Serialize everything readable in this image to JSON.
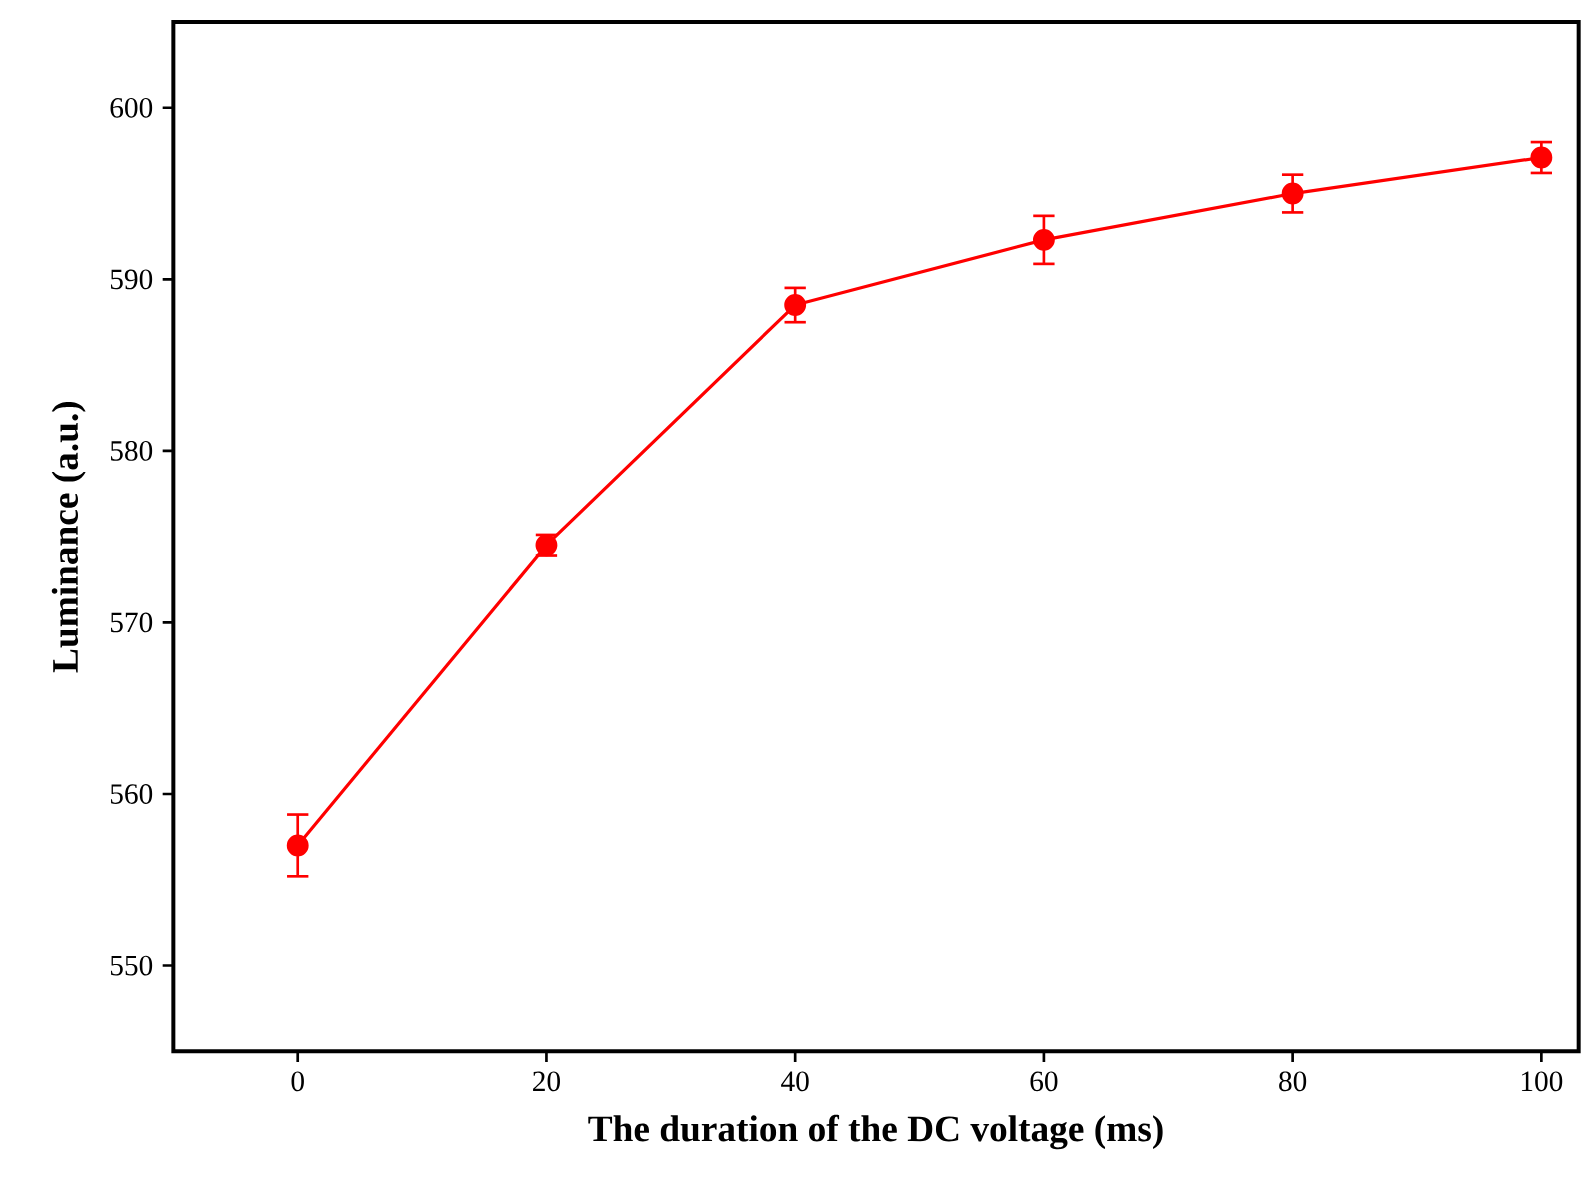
{
  "chart_data": {
    "type": "line",
    "xlabel": "The duration of the DC voltage (ms)",
    "ylabel": "Luminance (a.u.)",
    "x": [
      0,
      20,
      40,
      60,
      80,
      100
    ],
    "series": [
      {
        "color": "#ff0000",
        "values": [
          557.0,
          574.5,
          588.5,
          592.3,
          595.0,
          597.1
        ],
        "errors": [
          1.8,
          0.6,
          1.0,
          1.4,
          1.1,
          0.9
        ]
      }
    ],
    "xlim": [
      -10,
      103
    ],
    "ylim": [
      545,
      605
    ],
    "xticks": [
      0,
      20,
      40,
      60,
      80,
      100
    ],
    "yticks": [
      550,
      560,
      570,
      580,
      590,
      600
    ],
    "marker": "circle",
    "line_style": "solid"
  }
}
